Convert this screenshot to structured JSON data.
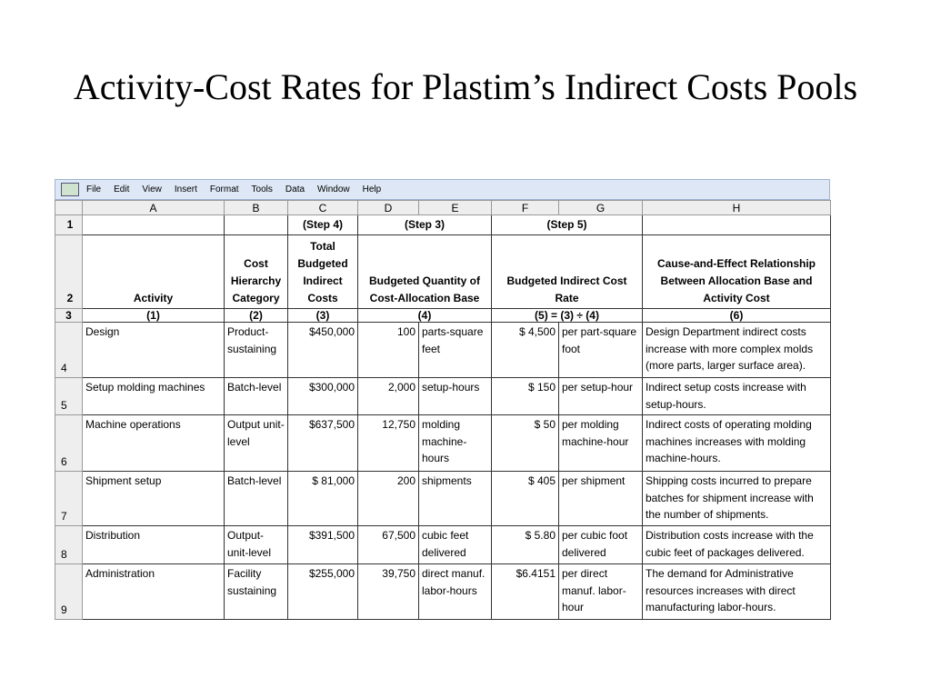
{
  "header": {
    "title": "Activity-Cost Rates for Plastim’s Indirect Costs Pools"
  },
  "sheet": {
    "menu": [
      "File",
      "Edit",
      "View",
      "Insert",
      "Format",
      "Tools",
      "Data",
      "Window",
      "Help"
    ],
    "columns": [
      "A",
      "B",
      "C",
      "D",
      "E",
      "F",
      "G",
      "H"
    ],
    "rows": [
      {
        "number": 1,
        "cells": [
          "(Step 4)",
          "(Step 3)",
          "(Step 5)"
        ]
      },
      {
        "number": 2,
        "cells": [
          "Activity",
          "Cost Hierarchy Category",
          "Total Budgeted Indirect Costs",
          "Budgeted Quantity of Cost-Allocation Base",
          "Budgeted Indirect Cost Rate",
          "Cause-and-Effect Relationship Between Allocation Base and Activity Cost"
        ]
      },
      {
        "number": 3,
        "cells": [
          "(1)",
          "(2)",
          "(3)",
          "(4)",
          "(5) = (3) ÷ (4)",
          "(6)"
        ]
      },
      {
        "number": 4,
        "cells": [
          "Design",
          "Product-sustaining",
          "$450,000",
          "100",
          "parts-square feet",
          "$ 4,500",
          "per part-square foot",
          "Design Department indirect costs increase with more complex molds (more parts, larger surface area)."
        ]
      },
      {
        "number": 5,
        "cells": [
          "Setup molding machines",
          "Batch-level",
          "$300,000",
          "2,000",
          "setup-hours",
          "$ 150",
          "per setup-hour",
          "Indirect setup costs increase with setup-hours."
        ]
      },
      {
        "number": 6,
        "cells": [
          "Machine operations",
          "Output unit-level",
          "$637,500",
          "12,750",
          "molding machine-hours",
          "$ 50",
          "per molding machine-hour",
          "Indirect costs of operating molding machines increases with molding machine-hours."
        ]
      },
      {
        "number": 7,
        "cells": [
          "Shipment setup",
          "Batch-level",
          "$ 81,000",
          "200",
          "shipments",
          "$ 405",
          "per shipment",
          "Shipping costs incurred to prepare batches for shipment increase with the number of shipments."
        ]
      },
      {
        "number": 8,
        "cells": [
          "Distribution",
          "Output-unit-level",
          "$391,500",
          "67,500",
          "cubic feet delivered",
          "$ 5.80",
          "per cubic foot delivered",
          "Distribution costs increase with the cubic feet of packages delivered."
        ]
      },
      {
        "number": 9,
        "cells": [
          "Administration",
          "Facility sustaining",
          "$255,000",
          "39,750",
          "direct manuf. labor-hours",
          "$6.4151",
          "per direct manuf. labor-hour",
          "The demand for Administrative resources increases with direct manufacturing labor-hours."
        ]
      }
    ]
  }
}
